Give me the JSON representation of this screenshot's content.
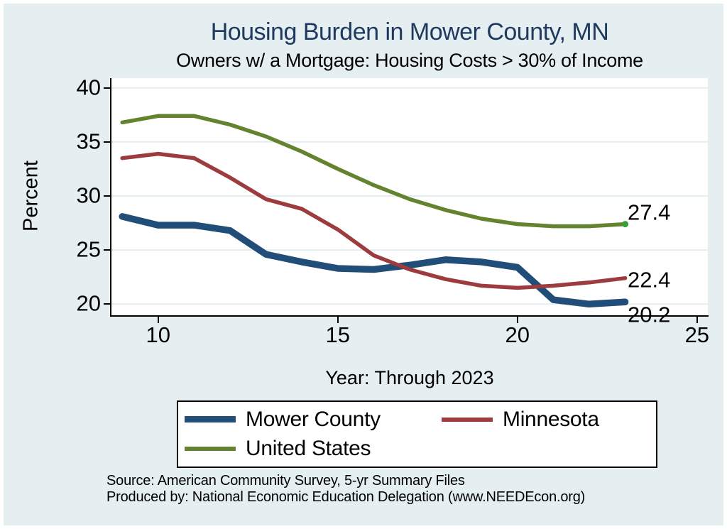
{
  "page": {
    "background": "#e5eff1",
    "title_color": "#20395e",
    "plot_background": "#ffffff",
    "grid_color": "#e3eef2"
  },
  "chart_data": {
    "type": "line",
    "title": "Housing Burden in Mower County, MN",
    "subtitle": "Owners w/ a Mortgage: Housing Costs > 30% of Income",
    "xlabel": "Year: Through 2023",
    "ylabel": "Percent",
    "x": [
      9,
      10,
      11,
      12,
      13,
      14,
      15,
      16,
      17,
      18,
      19,
      20,
      21,
      22,
      23
    ],
    "xticks": [
      10,
      15,
      20,
      25
    ],
    "yticks": [
      20,
      25,
      30,
      35,
      40
    ],
    "xlim": [
      8.7,
      25.3
    ],
    "ylim": [
      18.9,
      40.9
    ],
    "grid": true,
    "legend_position": "bottom",
    "series": [
      {
        "name": "Mower County",
        "color": "#214e78",
        "values": [
          28.1,
          27.3,
          27.3,
          26.8,
          24.6,
          23.9,
          23.3,
          23.2,
          23.6,
          24.1,
          23.9,
          23.4,
          20.4,
          20.0,
          20.2
        ]
      },
      {
        "name": "Minnesota",
        "color": "#9d3c3e",
        "values": [
          33.5,
          33.9,
          33.5,
          31.7,
          29.7,
          28.8,
          26.9,
          24.5,
          23.2,
          22.3,
          21.7,
          21.5,
          21.7,
          22.0,
          22.4
        ]
      },
      {
        "name": "United States",
        "color": "#64832f",
        "end_dot": true,
        "end_dot_color": "#35a135",
        "values": [
          36.8,
          37.4,
          37.4,
          36.6,
          35.5,
          34.1,
          32.5,
          31.0,
          29.7,
          28.7,
          27.9,
          27.4,
          27.2,
          27.2,
          27.4
        ]
      }
    ],
    "end_labels": [
      {
        "text": "27.4",
        "value": 27.4
      },
      {
        "text": "22.4",
        "value": 22.4
      },
      {
        "text": "20.2",
        "value": 20.2
      }
    ]
  },
  "source": {
    "line1": "Source: American Community Survey, 5-yr Summary Files",
    "line2": "Produced by: National Economic Education Delegation (www.NEEDEcon.org)"
  }
}
